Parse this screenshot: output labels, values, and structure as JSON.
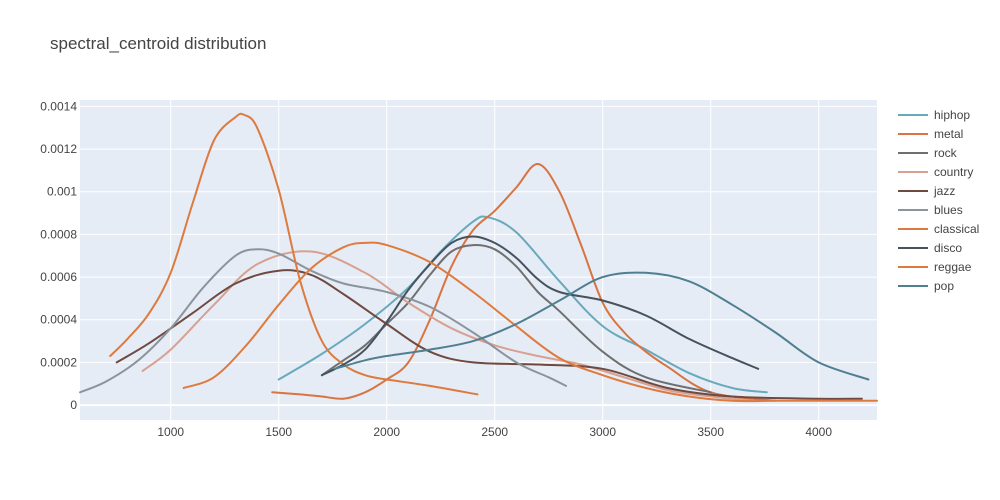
{
  "chart_data": {
    "type": "line",
    "title": "spectral_centroid distribution",
    "xlabel": "",
    "ylabel": "",
    "xlim": [
      580,
      4270
    ],
    "ylim": [
      -7e-05,
      0.00143
    ],
    "x_ticks": [
      1000,
      1500,
      2000,
      2500,
      3000,
      3500,
      4000
    ],
    "x_tick_labels": [
      "1000",
      "1500",
      "2000",
      "2500",
      "3000",
      "3500",
      "4000"
    ],
    "y_ticks": [
      0,
      0.0002,
      0.0004,
      0.0006,
      0.0008,
      0.001,
      0.0012,
      0.0014
    ],
    "y_tick_labels": [
      "0",
      "0.0002",
      "0.0004",
      "0.0006",
      "0.0008",
      "0.001",
      "0.0012",
      "0.0014"
    ],
    "grid": true,
    "legend_position": "right",
    "series": [
      {
        "name": "hiphop",
        "color": "#68a9bc",
        "x": [
          1500,
          1700,
          1900,
          2100,
          2250,
          2400,
          2470,
          2600,
          2800,
          3000,
          3200,
          3400,
          3600,
          3760
        ],
        "y": [
          0.00012,
          0.00024,
          0.00038,
          0.00055,
          0.00072,
          0.00086,
          0.00088,
          0.00081,
          0.00058,
          0.00037,
          0.00026,
          0.00015,
          8e-05,
          6e-05
        ]
      },
      {
        "name": "metal",
        "color": "#d9733f",
        "x": [
          1470,
          1600,
          1700,
          1800,
          1900,
          2000,
          2100,
          2200,
          2300,
          2400,
          2500,
          2600,
          2700,
          2800,
          2900,
          3000,
          3100,
          3200,
          3300,
          3500,
          3800
        ],
        "y": [
          6e-05,
          5e-05,
          4e-05,
          3e-05,
          6e-05,
          0.00012,
          0.0002,
          0.0004,
          0.00065,
          0.00082,
          0.00091,
          0.00102,
          0.00113,
          0.001,
          0.00075,
          0.00048,
          0.00034,
          0.00025,
          0.00018,
          6e-05,
          2e-05
        ]
      },
      {
        "name": "rock",
        "color": "#6f6f6f",
        "x": [
          1700,
          1800,
          1900,
          2000,
          2100,
          2200,
          2300,
          2400,
          2500,
          2600,
          2700,
          2800,
          3000,
          3200,
          3500
        ],
        "y": [
          0.00014,
          0.00021,
          0.00028,
          0.00038,
          0.00048,
          0.00061,
          0.00072,
          0.00075,
          0.00073,
          0.00065,
          0.00053,
          0.00044,
          0.00025,
          0.00013,
          6e-05
        ]
      },
      {
        "name": "country",
        "color": "#d7a091",
        "x": [
          870,
          1000,
          1200,
          1400,
          1650,
          1900,
          2100,
          2300,
          2500,
          2700,
          2900,
          3100,
          3300,
          3500,
          3700
        ],
        "y": [
          0.00016,
          0.00026,
          0.00047,
          0.00066,
          0.00072,
          0.00062,
          0.00048,
          0.00036,
          0.00028,
          0.00023,
          0.00019,
          0.00013,
          7e-05,
          4e-05,
          2e-05
        ]
      },
      {
        "name": "jazz",
        "color": "#6e4a40",
        "x": [
          750,
          900,
          1100,
          1300,
          1500,
          1650,
          1800,
          2000,
          2200,
          2400,
          2700,
          3000,
          3300,
          3600,
          4000,
          4200
        ],
        "y": [
          0.0002,
          0.00029,
          0.00043,
          0.00057,
          0.00063,
          0.00061,
          0.00052,
          0.00038,
          0.00025,
          0.0002,
          0.00019,
          0.00017,
          8e-05,
          4e-05,
          3e-05,
          3e-05
        ]
      },
      {
        "name": "blues",
        "color": "#8b949c",
        "x": [
          580,
          700,
          850,
          1000,
          1150,
          1300,
          1400,
          1500,
          1650,
          1800,
          2000,
          2200,
          2400,
          2600,
          2750,
          2830
        ],
        "y": [
          6e-05,
          0.00011,
          0.00021,
          0.00036,
          0.00055,
          0.0007,
          0.00073,
          0.00071,
          0.00063,
          0.00057,
          0.00053,
          0.00046,
          0.00034,
          0.0002,
          0.00013,
          9e-05
        ]
      },
      {
        "name": "classical",
        "color": "#dd7a3e",
        "x": [
          720,
          800,
          900,
          1000,
          1100,
          1200,
          1300,
          1340,
          1400,
          1500,
          1600,
          1700,
          1800,
          1900,
          2000,
          2200,
          2420
        ],
        "y": [
          0.00023,
          0.00031,
          0.00043,
          0.00062,
          0.00094,
          0.00124,
          0.00135,
          0.00136,
          0.0013,
          0.00101,
          0.00058,
          0.0003,
          0.00019,
          0.00014,
          0.00012,
          9e-05,
          5e-05
        ]
      },
      {
        "name": "disco",
        "color": "#46525d",
        "x": [
          1700,
          1800,
          1900,
          2000,
          2100,
          2200,
          2300,
          2400,
          2500,
          2600,
          2700,
          2800,
          3000,
          3200,
          3400,
          3600,
          3720
        ],
        "y": [
          0.00014,
          0.00019,
          0.00026,
          0.00039,
          0.00054,
          0.00066,
          0.00076,
          0.00079,
          0.00076,
          0.00069,
          0.00059,
          0.00053,
          0.00049,
          0.00042,
          0.00031,
          0.00022,
          0.00017
        ]
      },
      {
        "name": "reggae",
        "color": "#e07a3c",
        "x": [
          1060,
          1200,
          1350,
          1500,
          1650,
          1800,
          1900,
          2000,
          2200,
          2400,
          2600,
          2800,
          3000,
          3200,
          3400,
          3600,
          3800,
          4000,
          4270
        ],
        "y": [
          8e-05,
          0.00013,
          0.00028,
          0.00047,
          0.00064,
          0.00074,
          0.00076,
          0.00075,
          0.00067,
          0.00053,
          0.00037,
          0.00022,
          0.00014,
          8e-05,
          4e-05,
          2e-05,
          2e-05,
          2e-05,
          2e-05
        ]
      },
      {
        "name": "pop",
        "color": "#4f7f90",
        "x": [
          1760,
          1900,
          2000,
          2200,
          2400,
          2600,
          2800,
          3000,
          3200,
          3400,
          3600,
          3800,
          4000,
          4230
        ],
        "y": [
          0.00017,
          0.00021,
          0.00023,
          0.00026,
          0.0003,
          0.00038,
          0.00049,
          0.0006,
          0.00062,
          0.00058,
          0.00047,
          0.00034,
          0.0002,
          0.00012
        ]
      }
    ]
  }
}
